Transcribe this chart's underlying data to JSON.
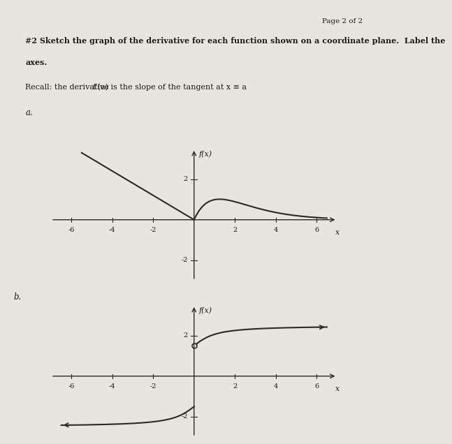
{
  "page_label": "Page 2 of 2",
  "title_line1": "#2 Sketch the graph of the derivative for each function shown on a coordinate plane.  Label the",
  "title_line2": "axes.",
  "recall_text": "Recall: the derivative f′(a) is the slope of the tangent at x = a",
  "label_a": "a.",
  "label_b": "b.",
  "graph_a_ylabel": "f(x)",
  "graph_b_ylabel": "f(x)",
  "xlim": [
    -7,
    7
  ],
  "ylim": [
    -3,
    3.5
  ],
  "xticks": [
    -6,
    -4,
    -2,
    2,
    4,
    6
  ],
  "yticks": [
    -2,
    2
  ],
  "bg_color": "#e8e4df",
  "line_color": "#2a2a2a",
  "text_color": "#1a1a1a",
  "open_circle_b": [
    0,
    0
  ]
}
